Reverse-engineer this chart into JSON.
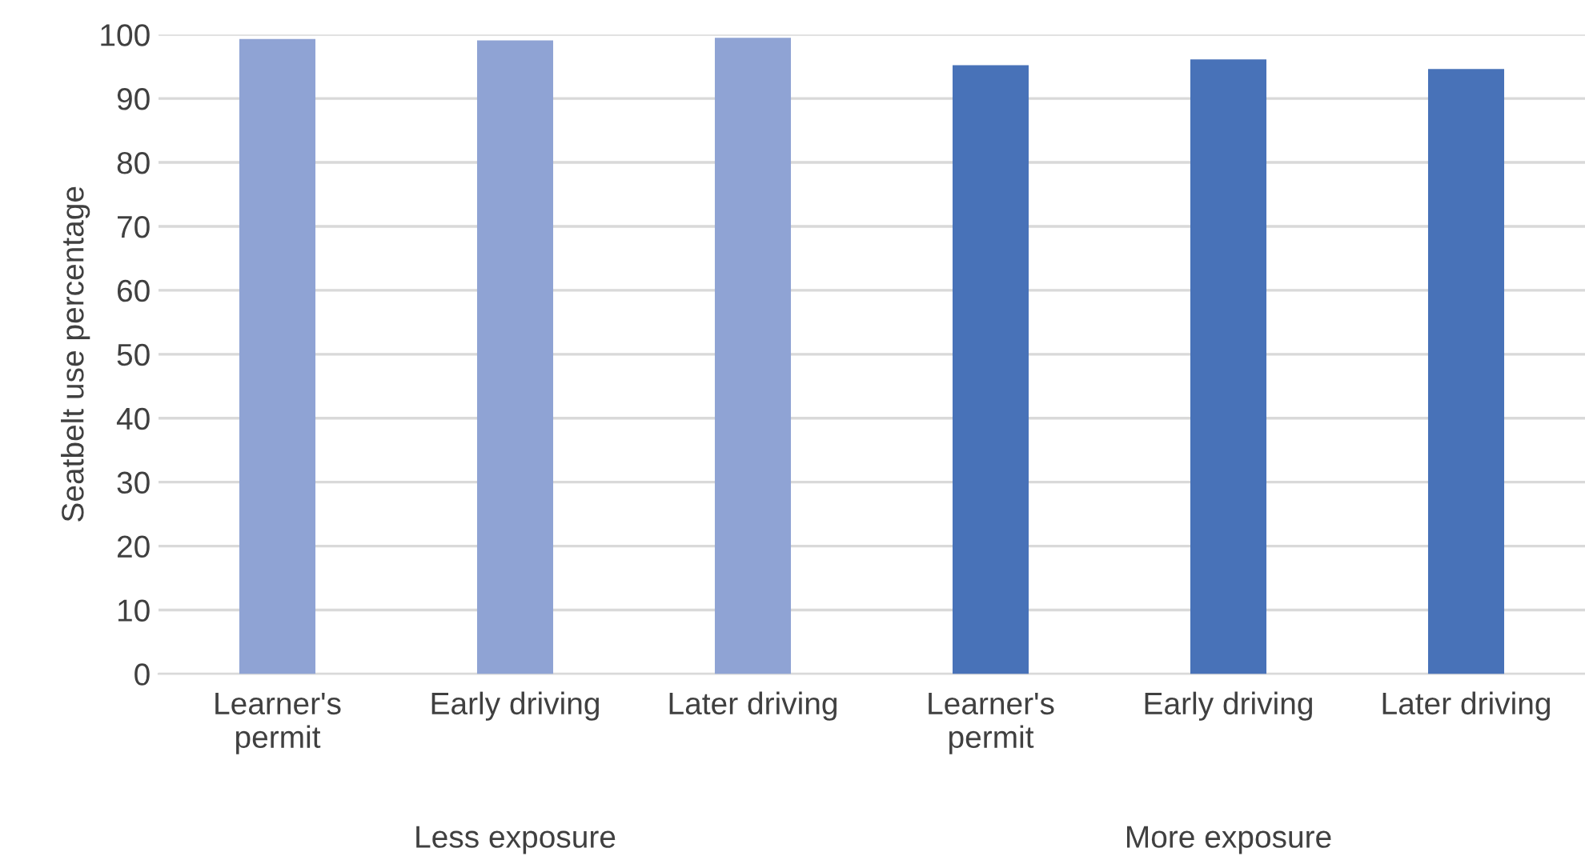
{
  "chart_data": {
    "type": "bar",
    "ylabel": "Seatbelt use percentage",
    "categories": [
      "Learner's permit",
      "Early driving",
      "Later driving",
      "Learner's permit",
      "Early driving",
      "Later driving"
    ],
    "values": [
      99.3,
      99.1,
      99.5,
      95.2,
      96.1,
      94.6
    ],
    "colors": [
      "#8fa3d4",
      "#8fa3d4",
      "#8fa3d4",
      "#4872b8",
      "#4872b8",
      "#4872b8"
    ],
    "ylim": [
      0,
      100
    ],
    "yticks": [
      0,
      10,
      20,
      30,
      40,
      50,
      60,
      70,
      80,
      90,
      100
    ],
    "grid": "y",
    "annotations": [
      "Less exposure",
      "More exposure"
    ]
  }
}
